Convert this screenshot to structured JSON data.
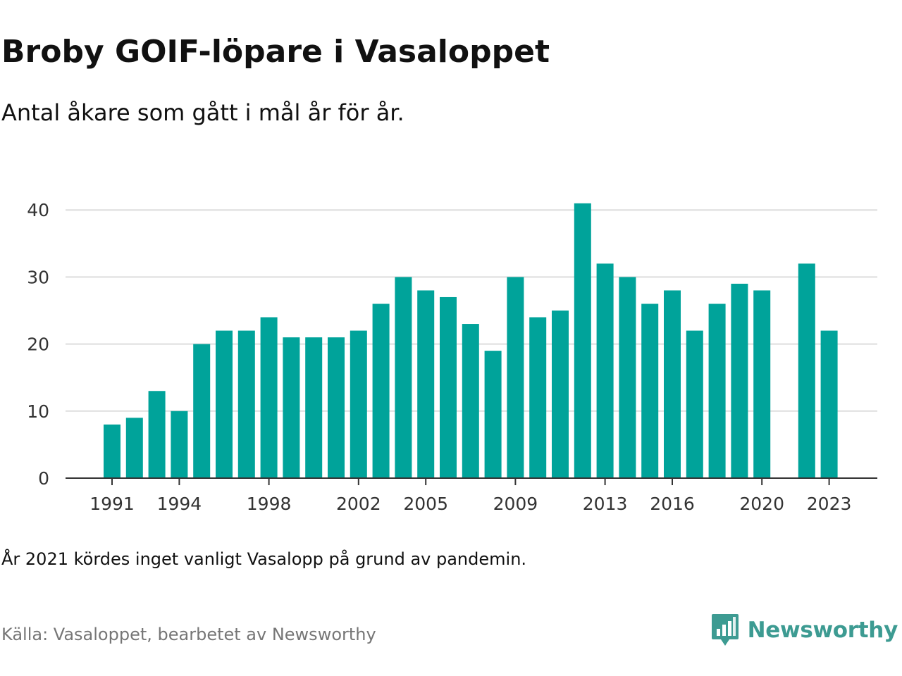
{
  "title": "Broby GOIF-löpare i Vasaloppet",
  "subtitle": "Antal åkare som gått i mål år för år.",
  "note": "År 2021 kördes inget vanligt Vasalopp på grund av pandemin.",
  "source": "Källa: Vasaloppet, bearbetet av Newsworthy",
  "brand": {
    "name": "Newsworthy",
    "icon": "newsworthy-logo-icon",
    "color": "#3d9b92"
  },
  "colors": {
    "bar": "#00a39a",
    "grid": "#dddddd",
    "axis": "#333333"
  },
  "chart_data": {
    "type": "bar",
    "title": "Broby GOIF-löpare i Vasaloppet",
    "subtitle": "Antal åkare som gått i mål år för år.",
    "xlabel": "",
    "ylabel": "",
    "x": [
      1991,
      1992,
      1993,
      1994,
      1995,
      1996,
      1997,
      1998,
      1999,
      2000,
      2001,
      2002,
      2003,
      2004,
      2005,
      2006,
      2007,
      2008,
      2009,
      2010,
      2011,
      2012,
      2013,
      2014,
      2015,
      2016,
      2017,
      2018,
      2019,
      2020,
      2021,
      2022,
      2023
    ],
    "values": [
      8,
      9,
      13,
      10,
      20,
      22,
      22,
      24,
      21,
      21,
      21,
      22,
      26,
      30,
      28,
      27,
      23,
      19,
      30,
      24,
      25,
      41,
      32,
      30,
      26,
      28,
      22,
      26,
      29,
      28,
      null,
      32,
      22
    ],
    "x_ticks": [
      1991,
      1994,
      1998,
      2002,
      2005,
      2009,
      2013,
      2016,
      2020,
      2023
    ],
    "y_ticks": [
      0,
      10,
      20,
      30,
      40
    ],
    "ylim": [
      0,
      42
    ],
    "grid": "horizontal",
    "legend": "none"
  }
}
